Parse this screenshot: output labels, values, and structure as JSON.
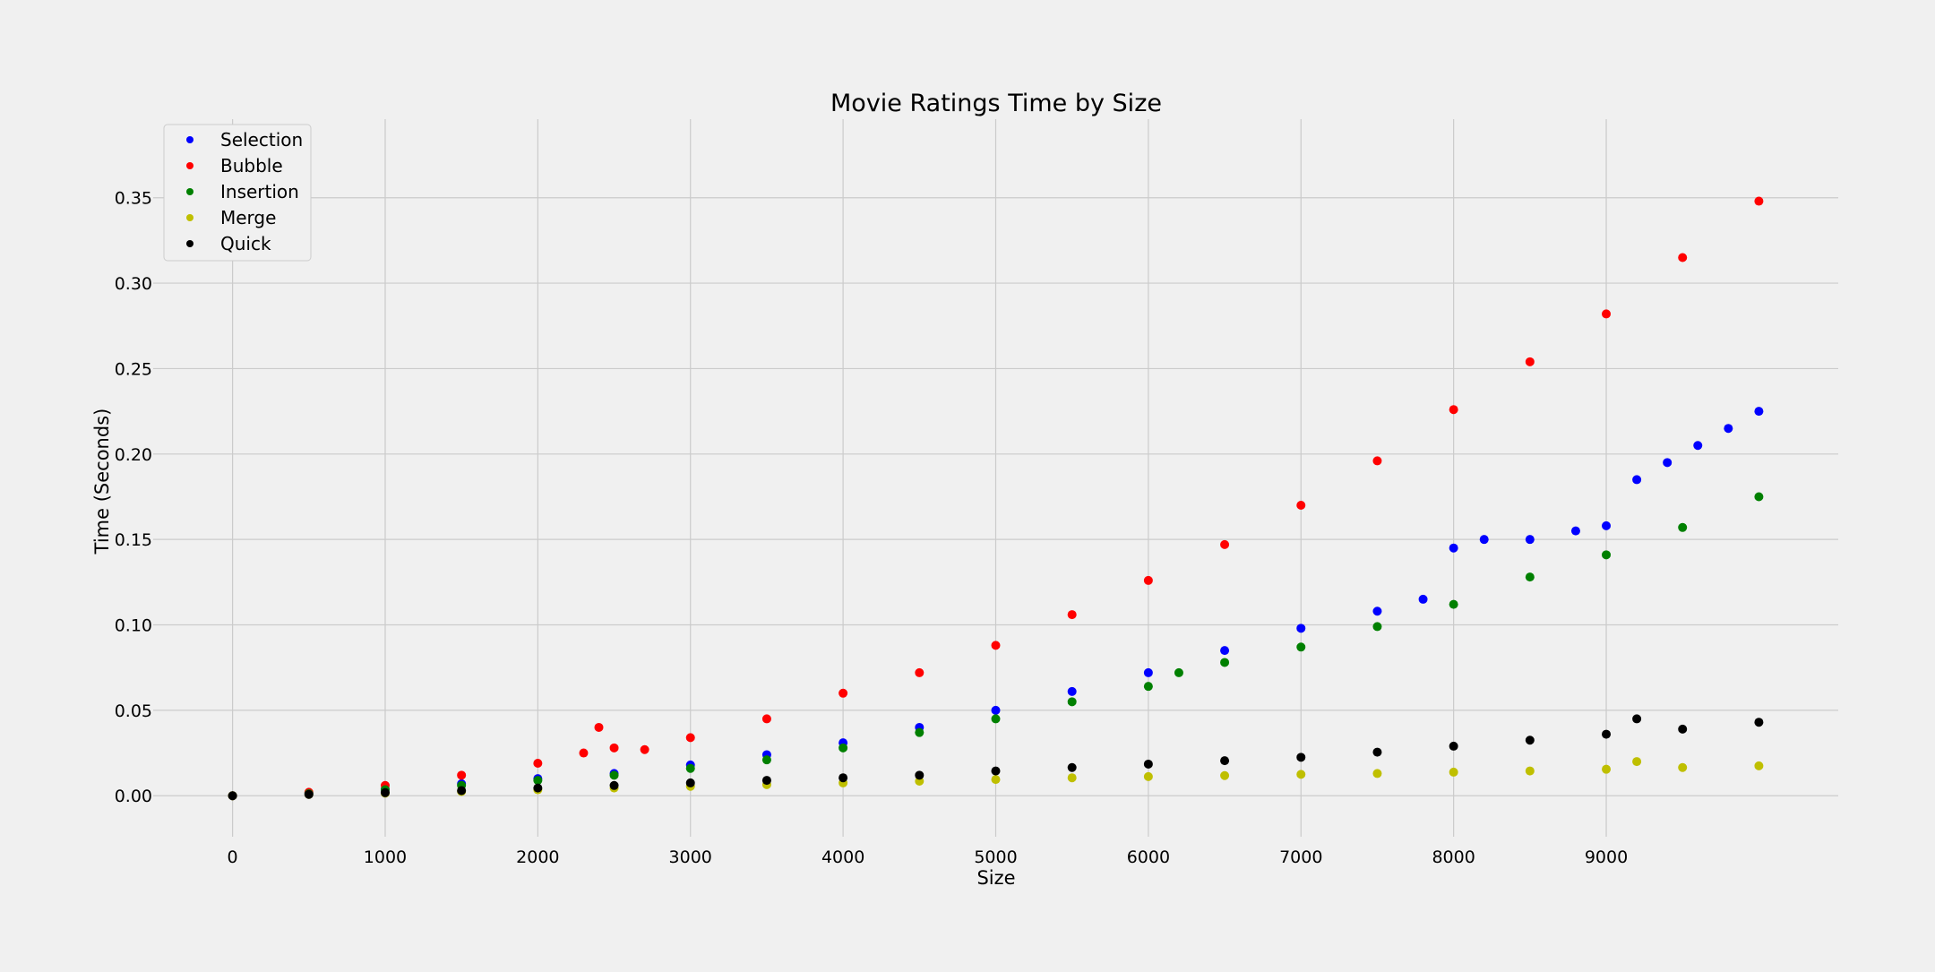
{
  "chart_data": {
    "type": "scatter",
    "title": "Movie Ratings Time by Size",
    "xlabel": "Size",
    "ylabel": "Time (Seconds)",
    "xlim": [
      -520,
      10520
    ],
    "ylim": [
      -0.024,
      0.396
    ],
    "xticks": [
      0,
      1000,
      2000,
      3000,
      4000,
      5000,
      6000,
      7000,
      8000,
      9000
    ],
    "xtick_labels": [
      "0",
      "1000",
      "2000",
      "3000",
      "4000",
      "5000",
      "6000",
      "7000",
      "8000",
      "9000"
    ],
    "yticks": [
      0.0,
      0.05,
      0.1,
      0.15,
      0.2,
      0.25,
      0.3,
      0.35
    ],
    "ytick_labels": [
      "0.00",
      "0.05",
      "0.10",
      "0.15",
      "0.20",
      "0.25",
      "0.30",
      "0.35"
    ],
    "grid": true,
    "legend_position": "top-left",
    "series": [
      {
        "name": "Selection",
        "color": "#0000ff",
        "x": [
          0,
          500,
          1000,
          1500,
          2000,
          2500,
          3000,
          3500,
          4000,
          4500,
          5000,
          5500,
          6000,
          6500,
          7000,
          7500,
          7800,
          8000,
          8200,
          8500,
          8800,
          9000,
          9200,
          9400,
          9600,
          9800,
          10000
        ],
        "y": [
          0.0,
          0.0015,
          0.004,
          0.007,
          0.01,
          0.013,
          0.018,
          0.024,
          0.031,
          0.04,
          0.05,
          0.061,
          0.072,
          0.085,
          0.098,
          0.108,
          0.115,
          0.145,
          0.15,
          0.15,
          0.155,
          0.158,
          0.185,
          0.195,
          0.205,
          0.215,
          0.225
        ]
      },
      {
        "name": "Bubble",
        "color": "#ff0000",
        "x": [
          0,
          500,
          1000,
          1500,
          2000,
          2300,
          2400,
          2500,
          2700,
          3000,
          3500,
          4000,
          4500,
          5000,
          5500,
          6000,
          6500,
          7000,
          7500,
          8000,
          8500,
          9000,
          9500,
          10000
        ],
        "y": [
          0.0,
          0.002,
          0.006,
          0.012,
          0.019,
          0.025,
          0.04,
          0.028,
          0.027,
          0.034,
          0.045,
          0.06,
          0.072,
          0.088,
          0.106,
          0.126,
          0.147,
          0.17,
          0.196,
          0.226,
          0.254,
          0.282,
          0.315,
          0.348
        ]
      },
      {
        "name": "Insertion",
        "color": "#008000",
        "x": [
          0,
          500,
          1000,
          1500,
          2000,
          2500,
          3000,
          3500,
          4000,
          4500,
          5000,
          5500,
          6000,
          6200,
          6500,
          7000,
          7500,
          8000,
          8500,
          9000,
          9500,
          10000
        ],
        "y": [
          0.0,
          0.0012,
          0.0035,
          0.006,
          0.009,
          0.012,
          0.016,
          0.021,
          0.028,
          0.037,
          0.045,
          0.055,
          0.064,
          0.072,
          0.078,
          0.087,
          0.099,
          0.112,
          0.128,
          0.141,
          0.157,
          0.175
        ]
      },
      {
        "name": "Merge",
        "color": "#bfbf00",
        "x": [
          0,
          500,
          1000,
          1500,
          2000,
          2500,
          3000,
          3500,
          4000,
          4500,
          5000,
          5500,
          6000,
          6500,
          7000,
          7500,
          8000,
          8500,
          9000,
          9200,
          9500,
          10000
        ],
        "y": [
          0.0,
          0.0008,
          0.0015,
          0.0025,
          0.0035,
          0.0045,
          0.0055,
          0.0065,
          0.0075,
          0.0085,
          0.0095,
          0.0105,
          0.0112,
          0.0118,
          0.0125,
          0.013,
          0.0138,
          0.0145,
          0.0155,
          0.02,
          0.0165,
          0.0175
        ]
      },
      {
        "name": "Quick",
        "color": "#000000",
        "x": [
          0,
          500,
          1000,
          1500,
          2000,
          2500,
          3000,
          3500,
          4000,
          4500,
          5000,
          5500,
          6000,
          6500,
          7000,
          7500,
          8000,
          8500,
          9000,
          9200,
          9500,
          10000
        ],
        "y": [
          0.0,
          0.0008,
          0.0018,
          0.003,
          0.0045,
          0.006,
          0.0075,
          0.009,
          0.0105,
          0.012,
          0.0145,
          0.0165,
          0.0185,
          0.0205,
          0.0225,
          0.0255,
          0.029,
          0.0325,
          0.036,
          0.045,
          0.039,
          0.043
        ]
      }
    ]
  }
}
